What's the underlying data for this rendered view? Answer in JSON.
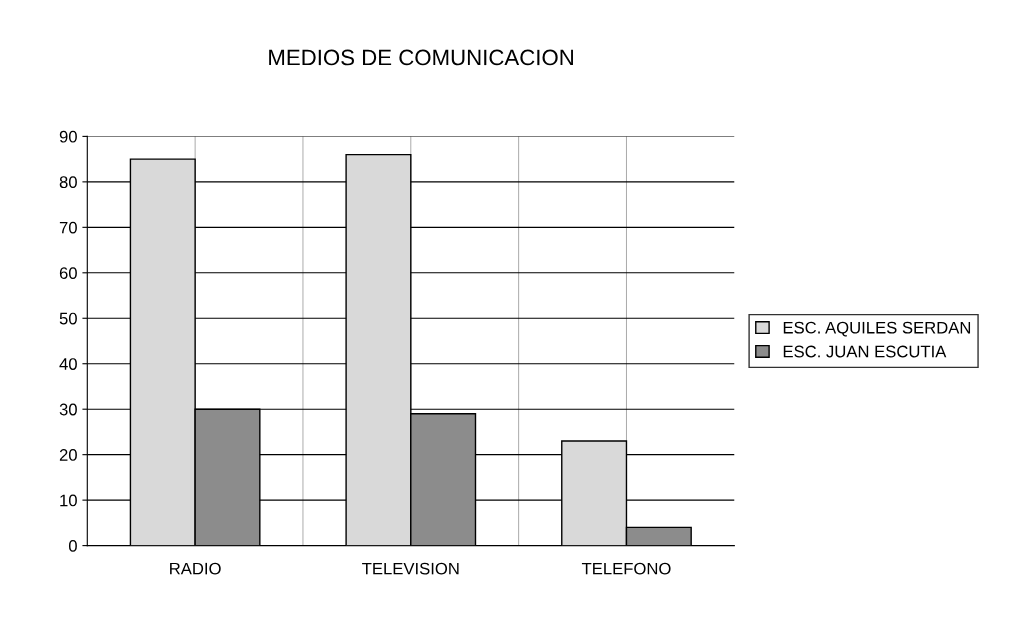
{
  "chart_data": {
    "type": "bar",
    "title": "MEDIOS DE COMUNICACION",
    "categories": [
      "RADIO",
      "TELEVISION",
      "TELEFONO"
    ],
    "series": [
      {
        "name": "ESC. AQUILES SERDAN",
        "color": "#d9d9d9",
        "values": [
          85,
          86,
          23
        ]
      },
      {
        "name": "ESC. JUAN ESCUTIA",
        "color": "#8c8c8c",
        "values": [
          30,
          29,
          4
        ]
      }
    ],
    "ylim": [
      0,
      90
    ],
    "yticks": [
      0,
      10,
      20,
      30,
      40,
      50,
      60,
      70,
      80,
      90
    ],
    "grid": true,
    "legend": "right"
  }
}
